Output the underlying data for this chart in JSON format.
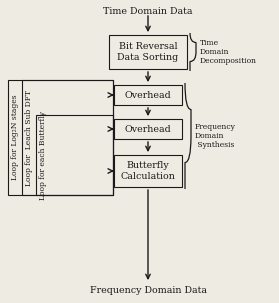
{
  "bg_color": "#eeebe3",
  "title_top": "Time Domain Data",
  "title_bottom": "Frequency Domain Data",
  "box1_label": "Bit Reversal\nData Sorting",
  "box2_label": "Overhead",
  "box3_label": "Overhead",
  "box4_label": "Butterfly\nCalculation",
  "right_label1": "Time\nDomain\nDecomposition",
  "right_label2": "Frequency\nDomain\n Synthesis",
  "left_label1": "Loop for Log₂N stages",
  "left_label2": "Loop for  Leach Sub DFT",
  "left_label3": "Loop for each Butterfly",
  "box_facecolor": "#eeebe3",
  "box_edgecolor": "#1a1a1a",
  "text_color": "#1a1a1a",
  "arrow_color": "#1a1a1a",
  "font_size": 6.8,
  "small_font_size": 5.5
}
